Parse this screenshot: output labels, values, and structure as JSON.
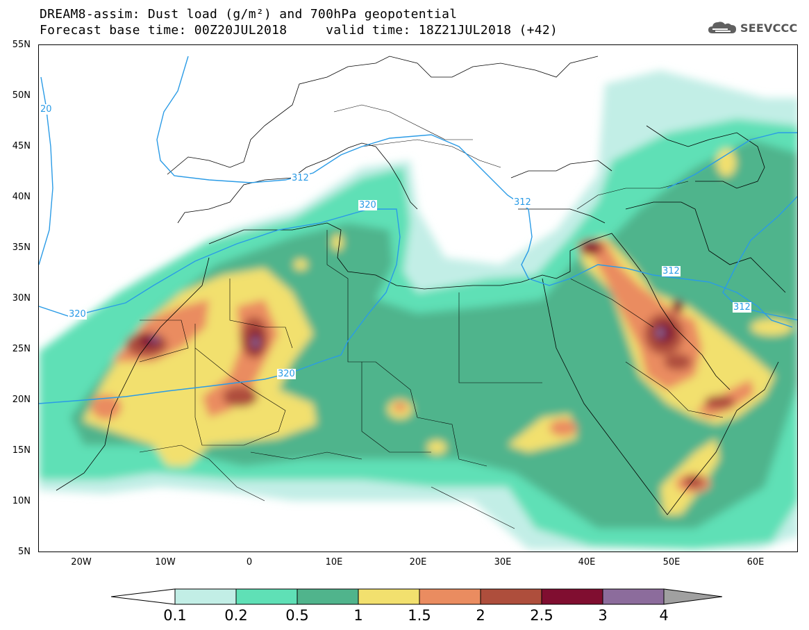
{
  "title_line1": "DREAM8-assim: Dust load (g/m²) and 700hPa geopotential",
  "title_line2": "Forecast base time: 00Z20JUL2018     valid time: 18Z21JUL2018 (+42)",
  "logo_text": "SEEVCCC",
  "latitude_labels": [
    "55N",
    "50N",
    "45N",
    "40N",
    "35N",
    "30N",
    "25N",
    "20N",
    "15N",
    "10N",
    "5N"
  ],
  "longitude_labels": [
    "20W",
    "10W",
    "0",
    "10E",
    "20E",
    "30E",
    "40E",
    "50E",
    "60E"
  ],
  "contour_labels": [
    "20",
    "312",
    "312",
    "312",
    "312",
    "320",
    "320",
    "320"
  ],
  "colorbar": {
    "labels": [
      "0.1",
      "0.2",
      "0.5",
      "1",
      "1.5",
      "2",
      "2.5",
      "3",
      "4"
    ],
    "colors": [
      "#c2eee6",
      "#5fe0b6",
      "#50b48c",
      "#f2e06e",
      "#ea8c60",
      "#ae4e3c",
      "#800e30",
      "#8c6c9c"
    ],
    "end_low_color": "#ffffff",
    "end_high_color": "#a0a0a0"
  },
  "contour_color": "#2a9be6"
}
